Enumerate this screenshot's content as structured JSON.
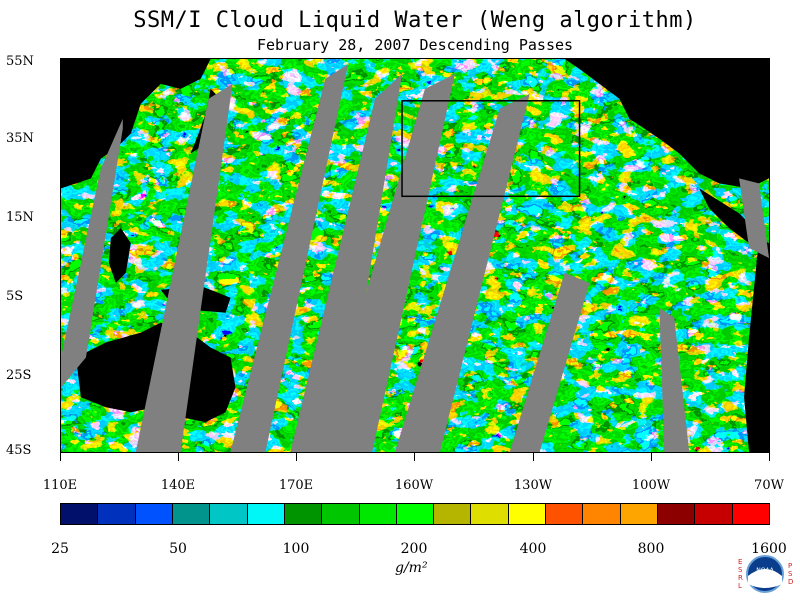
{
  "title": "SSM/I Cloud Liquid Water (Weng algorithm)",
  "subtitle": "February 28, 2007  Descending Passes",
  "map": {
    "lat_labels": [
      "55N",
      "35N",
      "15N",
      "5S",
      "25S",
      "45S"
    ],
    "lon_labels": [
      "110E",
      "140E",
      "170E",
      "160W",
      "130W",
      "100W",
      "70W"
    ],
    "land_color": "#000000",
    "gap_color": "#808080"
  },
  "colorbar": {
    "colors": [
      "#00106b",
      "#0031bd",
      "#0052ff",
      "#00948c",
      "#00c6c6",
      "#00f7f7",
      "#009400",
      "#00c600",
      "#00e700",
      "#00ff00",
      "#b5b500",
      "#dede00",
      "#ffff00",
      "#ff5200",
      "#ff8400",
      "#ffa500",
      "#8c0000",
      "#c60000",
      "#ff0000"
    ],
    "tick_labels": [
      "25",
      "50",
      "100",
      "200",
      "400",
      "800",
      "1600"
    ],
    "units": "g/m²"
  },
  "logo": {
    "text": "NOAA",
    "left_letters": "ESRL",
    "right_letters": "PSD"
  }
}
